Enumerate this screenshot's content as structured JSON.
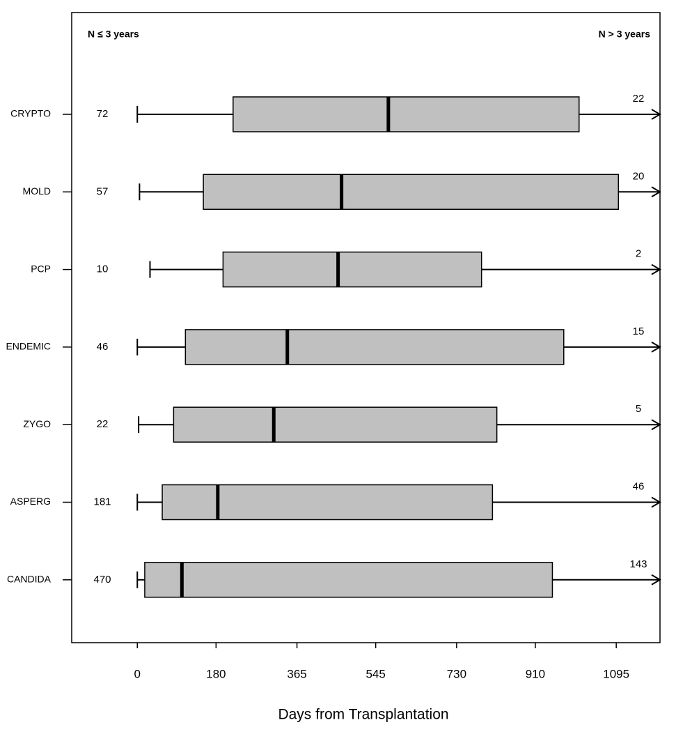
{
  "chart_data": {
    "type": "boxplot",
    "xlabel": "Days from Transplantation",
    "left_header": "N ≤ 3 years",
    "right_header": "N > 3 years",
    "categories": [
      "CRYPTO",
      "MOLD",
      "PCP",
      "ENDEMIC",
      "ZYGO",
      "ASPERG",
      "CANDIDA"
    ],
    "whisker_low": [
      0,
      5,
      29,
      0,
      3,
      0,
      0
    ],
    "q1": [
      219,
      151,
      196,
      110,
      83,
      57,
      17
    ],
    "median": [
      574,
      467,
      459,
      343,
      312,
      184,
      102
    ],
    "q3": [
      1010,
      1100,
      787,
      975,
      822,
      812,
      949
    ],
    "n_le3": [
      72,
      57,
      10,
      46,
      22,
      181,
      470
    ],
    "n_gt3": [
      22,
      20,
      2,
      15,
      5,
      46,
      143
    ],
    "color": "#c0c0c0",
    "xlim": [
      -150,
      1195
    ],
    "xticks": [
      0,
      180,
      365,
      545,
      730,
      910,
      1095
    ]
  }
}
